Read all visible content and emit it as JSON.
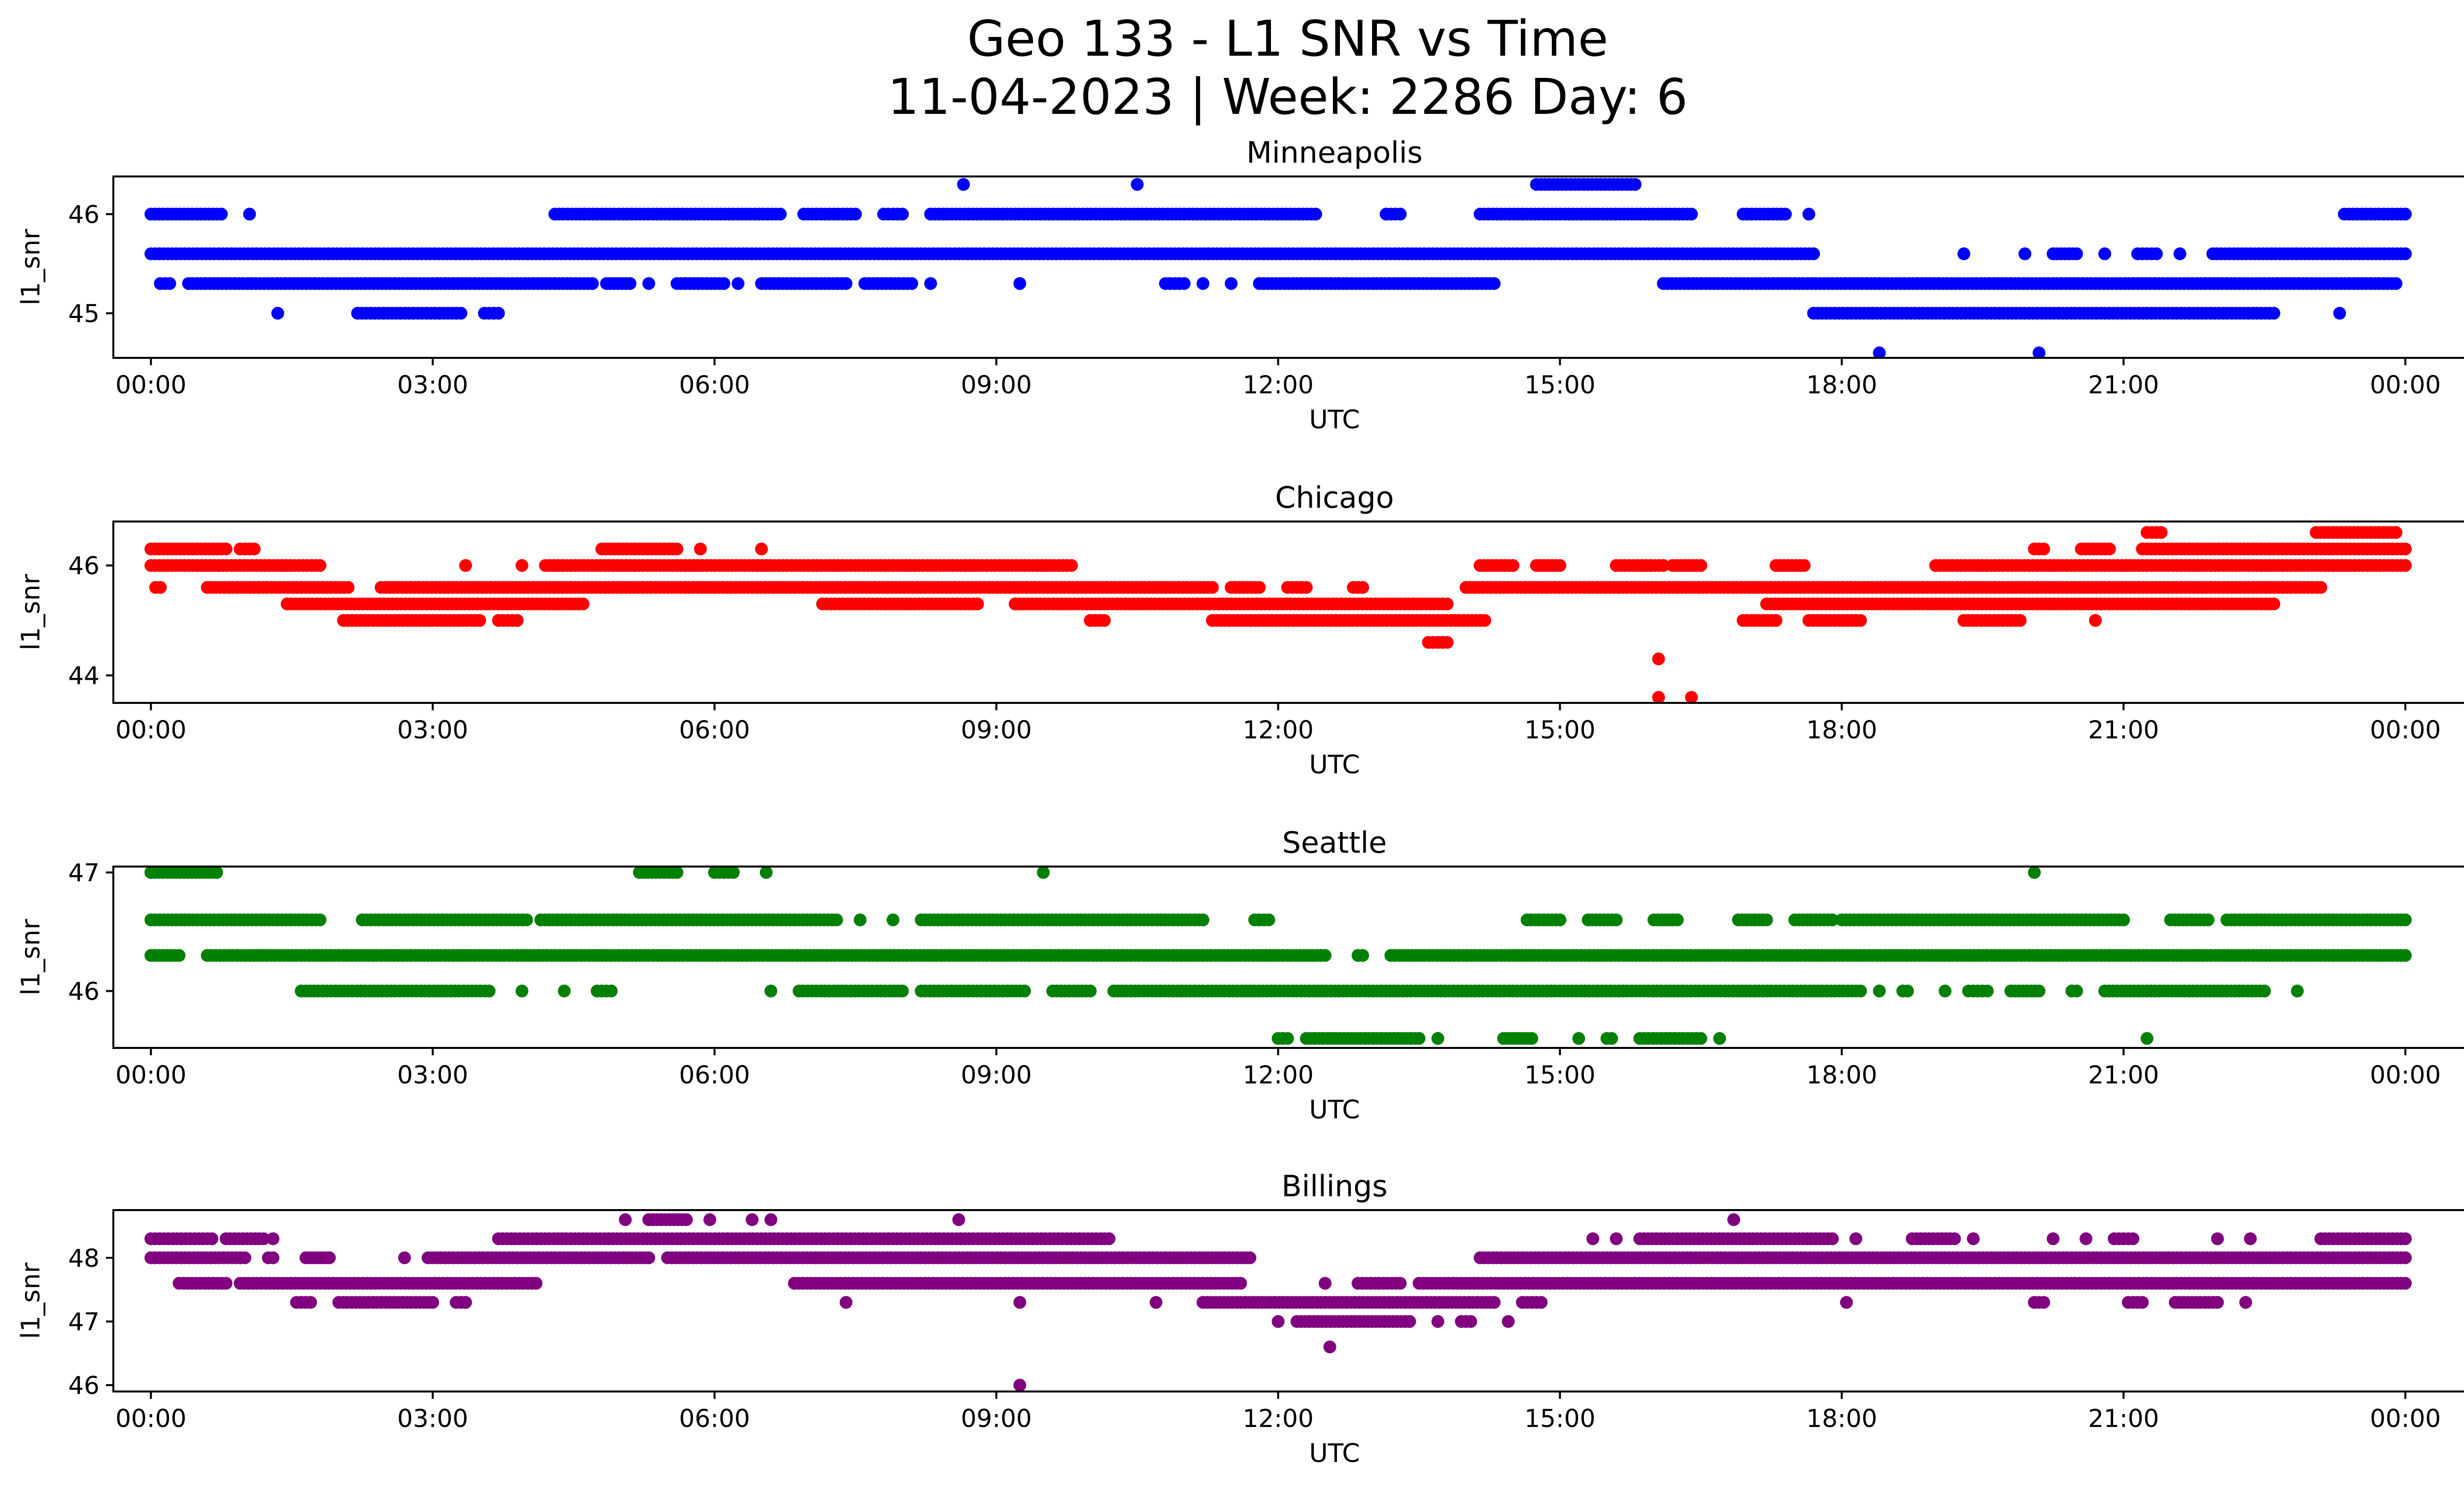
{
  "figure": {
    "title": "Geo 133 - L1 SNR vs Time",
    "subtitle": "11-04-2023 | Week: 2286 Day: 6"
  },
  "chart_data": [
    {
      "type": "scatter",
      "title": "Minneapolis",
      "xlabel": "UTC",
      "ylabel": "l1_snr",
      "color": "#0000ff",
      "x_unit": "hours UTC",
      "xlim": [
        -0.4,
        25.6
      ],
      "xticks": [
        "00:00",
        "03:00",
        "06:00",
        "09:00",
        "12:00",
        "15:00",
        "18:00",
        "21:00",
        "00:00"
      ],
      "ylim": [
        44.55,
        46.38
      ],
      "yticks": [
        45,
        46
      ],
      "grid": false,
      "levels": [
        {
          "y": 46.3,
          "segments": [
            [
              8.65,
              8.65
            ],
            [
              10.5,
              10.5
            ],
            [
              14.75,
              15.8
            ]
          ]
        },
        {
          "y": 46.0,
          "segments": [
            [
              0.0,
              0.75
            ],
            [
              1.05,
              1.05
            ],
            [
              4.3,
              6.7
            ],
            [
              6.95,
              7.5
            ],
            [
              7.8,
              8.0
            ],
            [
              8.3,
              12.4
            ],
            [
              13.15,
              13.3
            ],
            [
              14.15,
              16.4
            ],
            [
              16.95,
              17.4
            ],
            [
              17.65,
              17.65
            ],
            [
              23.35,
              24.0
            ]
          ]
        },
        {
          "y": 45.6,
          "segments": [
            [
              0.0,
              17.7
            ],
            [
              19.3,
              19.3
            ],
            [
              19.95,
              19.95
            ],
            [
              20.25,
              20.5
            ],
            [
              20.8,
              20.8
            ],
            [
              21.15,
              21.35
            ],
            [
              21.6,
              21.6
            ],
            [
              21.95,
              24.0
            ]
          ]
        },
        {
          "y": 45.3,
          "segments": [
            [
              0.1,
              0.2
            ],
            [
              0.4,
              4.7
            ],
            [
              4.85,
              5.1
            ],
            [
              5.3,
              5.3
            ],
            [
              5.6,
              6.1
            ],
            [
              6.25,
              6.25
            ],
            [
              6.5,
              7.4
            ],
            [
              7.6,
              8.1
            ],
            [
              8.3,
              8.3
            ],
            [
              9.25,
              9.25
            ],
            [
              10.8,
              11.0
            ],
            [
              11.2,
              11.2
            ],
            [
              11.5,
              11.5
            ],
            [
              11.8,
              14.3
            ],
            [
              16.1,
              23.9
            ]
          ]
        },
        {
          "y": 45.0,
          "segments": [
            [
              1.35,
              1.35
            ],
            [
              2.2,
              3.3
            ],
            [
              3.55,
              3.7
            ],
            [
              17.7,
              22.6
            ],
            [
              23.3,
              23.3
            ]
          ]
        },
        {
          "y": 44.6,
          "segments": [
            [
              18.4,
              18.4
            ],
            [
              20.1,
              20.1
            ]
          ]
        }
      ]
    },
    {
      "type": "scatter",
      "title": "Chicago",
      "xlabel": "UTC",
      "ylabel": "l1_snr",
      "color": "#ff0000",
      "x_unit": "hours UTC",
      "xlim": [
        -0.4,
        25.6
      ],
      "xticks": [
        "00:00",
        "03:00",
        "06:00",
        "09:00",
        "12:00",
        "15:00",
        "18:00",
        "21:00",
        "00:00"
      ],
      "ylim": [
        43.5,
        46.8
      ],
      "yticks": [
        44,
        46
      ],
      "grid": false,
      "levels": [
        {
          "y": 46.6,
          "segments": [
            [
              21.25,
              21.4
            ],
            [
              23.05,
              23.9
            ]
          ]
        },
        {
          "y": 46.3,
          "segments": [
            [
              0.0,
              0.8
            ],
            [
              0.95,
              1.1
            ],
            [
              4.8,
              5.6
            ],
            [
              5.85,
              5.85
            ],
            [
              6.5,
              6.5
            ],
            [
              20.05,
              20.15
            ],
            [
              20.55,
              20.85
            ],
            [
              21.2,
              24.0
            ]
          ]
        },
        {
          "y": 46.0,
          "segments": [
            [
              0.0,
              1.8
            ],
            [
              3.35,
              3.35
            ],
            [
              3.95,
              3.95
            ],
            [
              4.2,
              9.8
            ],
            [
              14.15,
              14.5
            ],
            [
              14.75,
              15.0
            ],
            [
              15.6,
              16.1
            ],
            [
              16.2,
              16.5
            ],
            [
              17.3,
              17.6
            ],
            [
              19.0,
              24.0
            ]
          ]
        },
        {
          "y": 45.6,
          "segments": [
            [
              0.05,
              0.1
            ],
            [
              0.6,
              2.1
            ],
            [
              2.45,
              11.3
            ],
            [
              11.5,
              11.8
            ],
            [
              12.1,
              12.3
            ],
            [
              12.8,
              12.9
            ],
            [
              14.0,
              23.1
            ]
          ]
        },
        {
          "y": 45.3,
          "segments": [
            [
              1.45,
              4.6
            ],
            [
              7.15,
              8.8
            ],
            [
              9.2,
              13.8
            ],
            [
              17.2,
              22.6
            ]
          ]
        },
        {
          "y": 45.0,
          "segments": [
            [
              2.05,
              3.5
            ],
            [
              3.7,
              3.9
            ],
            [
              10.0,
              10.15
            ],
            [
              11.3,
              14.2
            ],
            [
              16.95,
              17.3
            ],
            [
              17.65,
              18.2
            ],
            [
              19.3,
              19.9
            ],
            [
              20.7,
              20.7
            ]
          ]
        },
        {
          "y": 44.6,
          "segments": [
            [
              13.6,
              13.8
            ]
          ]
        },
        {
          "y": 44.3,
          "segments": [
            [
              16.05,
              16.05
            ]
          ]
        },
        {
          "y": 43.6,
          "segments": [
            [
              16.05,
              16.05
            ],
            [
              16.4,
              16.4
            ]
          ]
        }
      ]
    },
    {
      "type": "scatter",
      "title": "Seattle",
      "xlabel": "UTC",
      "ylabel": "l1_snr",
      "color": "#008000",
      "x_unit": "hours UTC",
      "xlim": [
        -0.4,
        25.6
      ],
      "xticks": [
        "00:00",
        "03:00",
        "06:00",
        "09:00",
        "12:00",
        "15:00",
        "18:00",
        "21:00",
        "00:00"
      ],
      "ylim": [
        45.52,
        47.05
      ],
      "yticks": [
        46,
        47
      ],
      "grid": false,
      "levels": [
        {
          "y": 47.0,
          "segments": [
            [
              0.0,
              0.7
            ],
            [
              5.2,
              5.6
            ],
            [
              6.0,
              6.2
            ],
            [
              6.55,
              6.55
            ],
            [
              9.5,
              9.5
            ],
            [
              20.05,
              20.05
            ]
          ]
        },
        {
          "y": 46.6,
          "segments": [
            [
              0.0,
              1.8
            ],
            [
              2.25,
              4.0
            ],
            [
              4.15,
              7.3
            ],
            [
              7.55,
              7.55
            ],
            [
              7.9,
              7.9
            ],
            [
              8.2,
              11.2
            ],
            [
              11.75,
              11.9
            ],
            [
              14.65,
              15.0
            ],
            [
              15.3,
              15.6
            ],
            [
              16.0,
              16.25
            ],
            [
              16.9,
              17.2
            ],
            [
              17.5,
              17.9
            ],
            [
              18.0,
              21.0
            ],
            [
              21.5,
              21.9
            ],
            [
              22.1,
              24.0
            ]
          ]
        },
        {
          "y": 46.3,
          "segments": [
            [
              0.0,
              0.3
            ],
            [
              0.6,
              5.3
            ],
            [
              5.35,
              12.5
            ],
            [
              12.85,
              12.9
            ],
            [
              13.2,
              24.0
            ]
          ]
        },
        {
          "y": 46.0,
          "segments": [
            [
              1.6,
              3.6
            ],
            [
              3.95,
              3.95
            ],
            [
              4.4,
              4.4
            ],
            [
              4.75,
              4.9
            ],
            [
              6.6,
              6.6
            ],
            [
              6.9,
              8.0
            ],
            [
              8.2,
              9.3
            ],
            [
              9.6,
              10.0
            ],
            [
              10.25,
              11.2
            ],
            [
              11.25,
              18.2
            ],
            [
              18.4,
              18.4
            ],
            [
              18.65,
              18.7
            ],
            [
              19.1,
              19.1
            ],
            [
              19.35,
              19.55
            ],
            [
              19.8,
              20.1
            ],
            [
              20.45,
              20.5
            ],
            [
              20.8,
              22.5
            ],
            [
              22.85,
              22.85
            ]
          ]
        },
        {
          "y": 45.6,
          "segments": [
            [
              12.0,
              12.1
            ],
            [
              12.3,
              13.5
            ],
            [
              13.7,
              13.7
            ],
            [
              14.4,
              14.7
            ],
            [
              15.2,
              15.2
            ],
            [
              15.5,
              15.55
            ],
            [
              15.85,
              16.5
            ],
            [
              16.7,
              16.7
            ],
            [
              21.25,
              21.25
            ]
          ]
        }
      ]
    },
    {
      "type": "scatter",
      "title": "Billings",
      "xlabel": "UTC",
      "ylabel": "l1_snr",
      "color": "#800080",
      "x_unit": "hours UTC",
      "xlim": [
        -0.4,
        25.6
      ],
      "xticks": [
        "00:00",
        "03:00",
        "06:00",
        "09:00",
        "12:00",
        "15:00",
        "18:00",
        "21:00",
        "00:00"
      ],
      "ylim": [
        45.9,
        48.75
      ],
      "yticks": [
        46,
        47,
        48
      ],
      "grid": false,
      "levels": [
        {
          "y": 48.6,
          "segments": [
            [
              5.05,
              5.05
            ],
            [
              5.3,
              5.7
            ],
            [
              5.95,
              5.95
            ],
            [
              6.4,
              6.4
            ],
            [
              6.6,
              6.6
            ],
            [
              8.6,
              8.6
            ],
            [
              16.85,
              16.85
            ]
          ]
        },
        {
          "y": 48.3,
          "segments": [
            [
              0.0,
              0.65
            ],
            [
              0.8,
              1.2
            ],
            [
              1.3,
              1.3
            ],
            [
              3.7,
              10.2
            ],
            [
              15.35,
              15.35
            ],
            [
              15.6,
              15.6
            ],
            [
              15.85,
              17.9
            ],
            [
              18.15,
              18.15
            ],
            [
              18.75,
              19.2
            ],
            [
              19.4,
              19.4
            ],
            [
              20.25,
              20.25
            ],
            [
              20.6,
              20.6
            ],
            [
              20.9,
              21.1
            ],
            [
              22.0,
              22.0
            ],
            [
              22.35,
              22.35
            ],
            [
              23.1,
              24.0
            ]
          ]
        },
        {
          "y": 48.0,
          "segments": [
            [
              0.0,
              1.0
            ],
            [
              1.25,
              1.3
            ],
            [
              1.65,
              1.9
            ],
            [
              2.7,
              2.7
            ],
            [
              2.95,
              5.3
            ],
            [
              5.5,
              11.7
            ],
            [
              14.15,
              24.0
            ]
          ]
        },
        {
          "y": 47.6,
          "segments": [
            [
              0.3,
              0.8
            ],
            [
              0.95,
              4.1
            ],
            [
              6.85,
              11.6
            ],
            [
              12.5,
              12.5
            ],
            [
              12.85,
              13.3
            ],
            [
              13.5,
              24.0
            ]
          ]
        },
        {
          "y": 47.3,
          "segments": [
            [
              1.55,
              1.7
            ],
            [
              2.0,
              3.0
            ],
            [
              3.25,
              3.35
            ],
            [
              7.4,
              7.4
            ],
            [
              9.25,
              9.25
            ],
            [
              10.7,
              10.7
            ],
            [
              11.2,
              14.3
            ],
            [
              14.6,
              14.8
            ],
            [
              18.05,
              18.05
            ],
            [
              20.05,
              20.15
            ],
            [
              21.05,
              21.2
            ],
            [
              21.55,
              22.0
            ],
            [
              22.3,
              22.3
            ]
          ]
        },
        {
          "y": 47.0,
          "segments": [
            [
              12.0,
              12.0
            ],
            [
              12.2,
              13.4
            ],
            [
              13.7,
              13.7
            ],
            [
              13.95,
              14.05
            ],
            [
              14.45,
              14.45
            ]
          ]
        },
        {
          "y": 46.6,
          "segments": [
            [
              12.55,
              12.55
            ]
          ]
        },
        {
          "y": 46.0,
          "segments": [
            [
              9.25,
              9.25
            ]
          ]
        }
      ]
    }
  ]
}
